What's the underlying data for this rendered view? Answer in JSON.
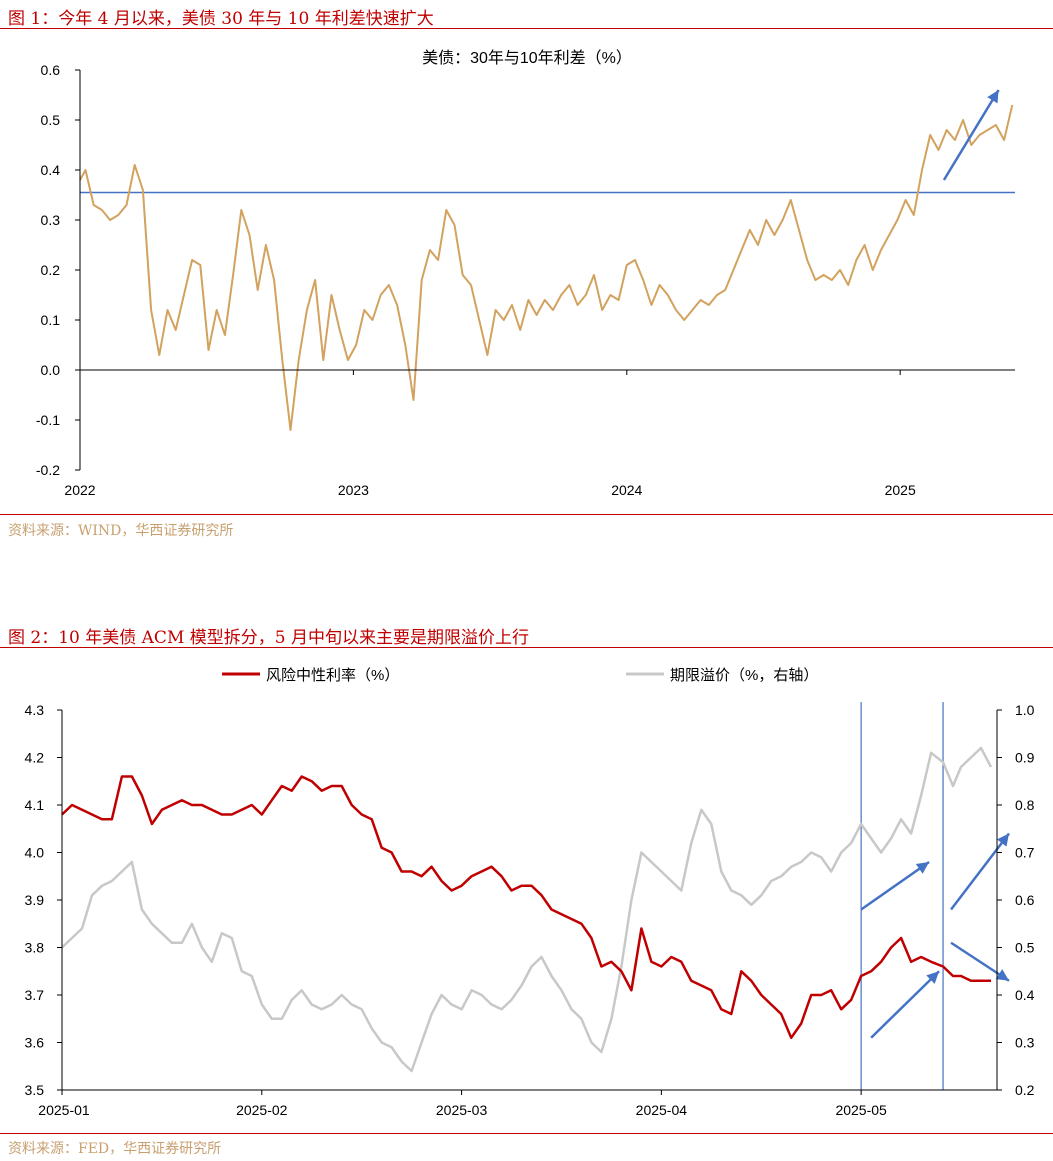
{
  "figure1": {
    "caption": "图 1：今年 4 月以来，美债 30 年与 10 年利差快速扩大",
    "source": "资料来源：WIND，华西证券研究所",
    "chart_data": {
      "type": "line",
      "title": "美债：30年与10年利差（%）",
      "x_tick_labels": [
        "2022",
        "2023",
        "2024",
        "2025"
      ],
      "y_tick_labels": [
        "0.6",
        "0.5",
        "0.4",
        "0.3",
        "0.2",
        "0.1",
        "0.0",
        "-0.1",
        "-0.2"
      ],
      "ylim": [
        -0.2,
        0.6
      ],
      "xlim": [
        2022.0,
        2025.42
      ],
      "reference_line": {
        "y": 0.355,
        "color": "#4472c4"
      },
      "series": [
        {
          "name": "美债30年与10年利差",
          "color": "#d2a25e",
          "x": [
            2022.0,
            2022.02,
            2022.05,
            2022.08,
            2022.11,
            2022.14,
            2022.17,
            2022.2,
            2022.23,
            2022.26,
            2022.29,
            2022.32,
            2022.35,
            2022.38,
            2022.41,
            2022.44,
            2022.47,
            2022.5,
            2022.53,
            2022.56,
            2022.59,
            2022.62,
            2022.65,
            2022.68,
            2022.71,
            2022.74,
            2022.77,
            2022.8,
            2022.83,
            2022.86,
            2022.89,
            2022.92,
            2022.95,
            2022.98,
            2023.01,
            2023.04,
            2023.07,
            2023.1,
            2023.13,
            2023.16,
            2023.19,
            2023.22,
            2023.25,
            2023.28,
            2023.31,
            2023.34,
            2023.37,
            2023.4,
            2023.43,
            2023.46,
            2023.49,
            2023.52,
            2023.55,
            2023.58,
            2023.61,
            2023.64,
            2023.67,
            2023.7,
            2023.73,
            2023.76,
            2023.79,
            2023.82,
            2023.85,
            2023.88,
            2023.91,
            2023.94,
            2023.97,
            2024.0,
            2024.03,
            2024.06,
            2024.09,
            2024.12,
            2024.15,
            2024.18,
            2024.21,
            2024.24,
            2024.27,
            2024.3,
            2024.33,
            2024.36,
            2024.39,
            2024.42,
            2024.45,
            2024.48,
            2024.51,
            2024.54,
            2024.57,
            2024.6,
            2024.63,
            2024.66,
            2024.69,
            2024.72,
            2024.75,
            2024.78,
            2024.81,
            2024.84,
            2024.87,
            2024.9,
            2024.93,
            2024.96,
            2024.99,
            2025.02,
            2025.05,
            2025.08,
            2025.11,
            2025.14,
            2025.17,
            2025.2,
            2025.23,
            2025.26,
            2025.29,
            2025.32,
            2025.35,
            2025.38,
            2025.41
          ],
          "values": [
            0.38,
            0.4,
            0.33,
            0.32,
            0.3,
            0.31,
            0.33,
            0.41,
            0.36,
            0.12,
            0.03,
            0.12,
            0.08,
            0.15,
            0.22,
            0.21,
            0.04,
            0.12,
            0.07,
            0.19,
            0.32,
            0.27,
            0.16,
            0.25,
            0.18,
            0.02,
            -0.12,
            0.02,
            0.12,
            0.18,
            0.02,
            0.15,
            0.08,
            0.02,
            0.05,
            0.12,
            0.1,
            0.15,
            0.17,
            0.13,
            0.05,
            -0.06,
            0.18,
            0.24,
            0.22,
            0.32,
            0.29,
            0.19,
            0.17,
            0.1,
            0.03,
            0.12,
            0.1,
            0.13,
            0.08,
            0.14,
            0.11,
            0.14,
            0.12,
            0.15,
            0.17,
            0.13,
            0.15,
            0.19,
            0.12,
            0.15,
            0.14,
            0.21,
            0.22,
            0.18,
            0.13,
            0.17,
            0.15,
            0.12,
            0.1,
            0.12,
            0.14,
            0.13,
            0.15,
            0.16,
            0.2,
            0.24,
            0.28,
            0.25,
            0.3,
            0.27,
            0.3,
            0.34,
            0.28,
            0.22,
            0.18,
            0.19,
            0.18,
            0.2,
            0.17,
            0.22,
            0.25,
            0.2,
            0.24,
            0.27,
            0.3,
            0.34,
            0.31,
            0.4,
            0.47,
            0.44,
            0.48,
            0.46,
            0.5,
            0.45,
            0.47,
            0.48,
            0.49,
            0.46,
            0.53
          ]
        }
      ],
      "annotations": [
        {
          "type": "arrow",
          "from": [
            2025.16,
            0.38
          ],
          "to": [
            2025.36,
            0.56
          ],
          "color": "#4472c4"
        }
      ]
    }
  },
  "figure2": {
    "caption": "图 2：10 年美债 ACM 模型拆分，5 月中旬以来主要是期限溢价上行",
    "source": "资料来源：FED，华西证券研究所",
    "chart_data": {
      "type": "line",
      "title": "",
      "x_tick_labels": [
        "2025-01",
        "2025-02",
        "2025-03",
        "2025-04",
        "2025-05"
      ],
      "y_left_tick_labels": [
        "4.3",
        "4.2",
        "4.1",
        "4.0",
        "3.9",
        "3.8",
        "3.7",
        "3.6",
        "3.5"
      ],
      "y_right_tick_labels": [
        "1.0",
        "0.9",
        "0.8",
        "0.7",
        "0.6",
        "0.5",
        "0.4",
        "0.3",
        "0.2"
      ],
      "ylim_left": [
        3.5,
        4.3
      ],
      "ylim_right": [
        0.2,
        1.0
      ],
      "xlim": [
        0,
        4.68
      ],
      "vertical_lines": [
        {
          "x": 4.0,
          "color": "#4472c4"
        },
        {
          "x": 4.41,
          "color": "#4472c4"
        }
      ],
      "series": [
        {
          "name": "风险中性利率（%）",
          "axis": "left",
          "color": "#c00000",
          "x": [
            0.0,
            0.05,
            0.1,
            0.15,
            0.2,
            0.25,
            0.3,
            0.35,
            0.4,
            0.45,
            0.5,
            0.55,
            0.6,
            0.65,
            0.7,
            0.75,
            0.8,
            0.85,
            0.9,
            0.95,
            1.0,
            1.05,
            1.1,
            1.15,
            1.2,
            1.25,
            1.3,
            1.35,
            1.4,
            1.45,
            1.5,
            1.55,
            1.6,
            1.65,
            1.7,
            1.75,
            1.8,
            1.85,
            1.9,
            1.95,
            2.0,
            2.05,
            2.1,
            2.15,
            2.2,
            2.25,
            2.3,
            2.35,
            2.4,
            2.45,
            2.5,
            2.55,
            2.6,
            2.65,
            2.7,
            2.75,
            2.8,
            2.85,
            2.9,
            2.95,
            3.0,
            3.05,
            3.1,
            3.15,
            3.2,
            3.25,
            3.3,
            3.35,
            3.4,
            3.45,
            3.5,
            3.55,
            3.6,
            3.65,
            3.7,
            3.75,
            3.8,
            3.85,
            3.9,
            3.95,
            4.0,
            4.05,
            4.1,
            4.15,
            4.2,
            4.25,
            4.3,
            4.35,
            4.41,
            4.46,
            4.5,
            4.55,
            4.6,
            4.65
          ],
          "values": [
            4.08,
            4.1,
            4.09,
            4.08,
            4.07,
            4.07,
            4.16,
            4.16,
            4.12,
            4.06,
            4.09,
            4.1,
            4.11,
            4.1,
            4.1,
            4.09,
            4.08,
            4.08,
            4.09,
            4.1,
            4.08,
            4.11,
            4.14,
            4.13,
            4.16,
            4.15,
            4.13,
            4.14,
            4.14,
            4.1,
            4.08,
            4.07,
            4.01,
            4.0,
            3.96,
            3.96,
            3.95,
            3.97,
            3.94,
            3.92,
            3.93,
            3.95,
            3.96,
            3.97,
            3.95,
            3.92,
            3.93,
            3.93,
            3.91,
            3.88,
            3.87,
            3.86,
            3.85,
            3.82,
            3.76,
            3.77,
            3.75,
            3.71,
            3.84,
            3.77,
            3.76,
            3.78,
            3.77,
            3.73,
            3.72,
            3.71,
            3.67,
            3.66,
            3.75,
            3.73,
            3.7,
            3.68,
            3.66,
            3.61,
            3.64,
            3.7,
            3.7,
            3.71,
            3.67,
            3.69,
            3.74,
            3.75,
            3.77,
            3.8,
            3.82,
            3.77,
            3.78,
            3.77,
            3.76,
            3.74,
            3.74,
            3.73,
            3.73,
            3.73
          ]
        },
        {
          "name": "期限溢价（%，右轴）",
          "axis": "right",
          "color": "#c8c8c8",
          "x": [
            0.0,
            0.05,
            0.1,
            0.15,
            0.2,
            0.25,
            0.3,
            0.35,
            0.4,
            0.45,
            0.5,
            0.55,
            0.6,
            0.65,
            0.7,
            0.75,
            0.8,
            0.85,
            0.9,
            0.95,
            1.0,
            1.05,
            1.1,
            1.15,
            1.2,
            1.25,
            1.3,
            1.35,
            1.4,
            1.45,
            1.5,
            1.55,
            1.6,
            1.65,
            1.7,
            1.75,
            1.8,
            1.85,
            1.9,
            1.95,
            2.0,
            2.05,
            2.1,
            2.15,
            2.2,
            2.25,
            2.3,
            2.35,
            2.4,
            2.45,
            2.5,
            2.55,
            2.6,
            2.65,
            2.7,
            2.75,
            2.8,
            2.85,
            2.9,
            2.95,
            3.0,
            3.05,
            3.1,
            3.15,
            3.2,
            3.25,
            3.3,
            3.35,
            3.4,
            3.45,
            3.5,
            3.55,
            3.6,
            3.65,
            3.7,
            3.75,
            3.8,
            3.85,
            3.9,
            3.95,
            4.0,
            4.05,
            4.1,
            4.15,
            4.2,
            4.25,
            4.3,
            4.35,
            4.41,
            4.46,
            4.5,
            4.55,
            4.6,
            4.65
          ],
          "values": [
            0.5,
            0.52,
            0.54,
            0.61,
            0.63,
            0.64,
            0.66,
            0.68,
            0.58,
            0.55,
            0.53,
            0.51,
            0.51,
            0.55,
            0.5,
            0.47,
            0.53,
            0.52,
            0.45,
            0.44,
            0.38,
            0.35,
            0.35,
            0.39,
            0.41,
            0.38,
            0.37,
            0.38,
            0.4,
            0.38,
            0.37,
            0.33,
            0.3,
            0.29,
            0.26,
            0.24,
            0.3,
            0.36,
            0.4,
            0.38,
            0.37,
            0.41,
            0.4,
            0.38,
            0.37,
            0.39,
            0.42,
            0.46,
            0.48,
            0.44,
            0.41,
            0.37,
            0.35,
            0.3,
            0.28,
            0.35,
            0.46,
            0.6,
            0.7,
            0.68,
            0.66,
            0.64,
            0.62,
            0.72,
            0.79,
            0.76,
            0.66,
            0.62,
            0.61,
            0.59,
            0.61,
            0.64,
            0.65,
            0.67,
            0.68,
            0.7,
            0.69,
            0.66,
            0.7,
            0.72,
            0.76,
            0.73,
            0.7,
            0.73,
            0.77,
            0.74,
            0.82,
            0.91,
            0.89,
            0.84,
            0.88,
            0.9,
            0.92,
            0.88
          ]
        }
      ],
      "annotations": [
        {
          "type": "arrow",
          "from": [
            4.0,
            3.88
          ],
          "to": [
            4.34,
            3.98
          ],
          "color": "#4472c4"
        },
        {
          "type": "arrow",
          "from": [
            4.05,
            3.61
          ],
          "to": [
            4.39,
            3.75
          ],
          "color": "#4472c4"
        },
        {
          "type": "arrow",
          "from": [
            4.45,
            3.88
          ],
          "to": [
            4.74,
            4.04
          ],
          "color": "#4472c4"
        },
        {
          "type": "arrow",
          "from": [
            4.45,
            3.81
          ],
          "to": [
            4.74,
            3.73
          ],
          "color": "#4472c4"
        }
      ]
    }
  }
}
